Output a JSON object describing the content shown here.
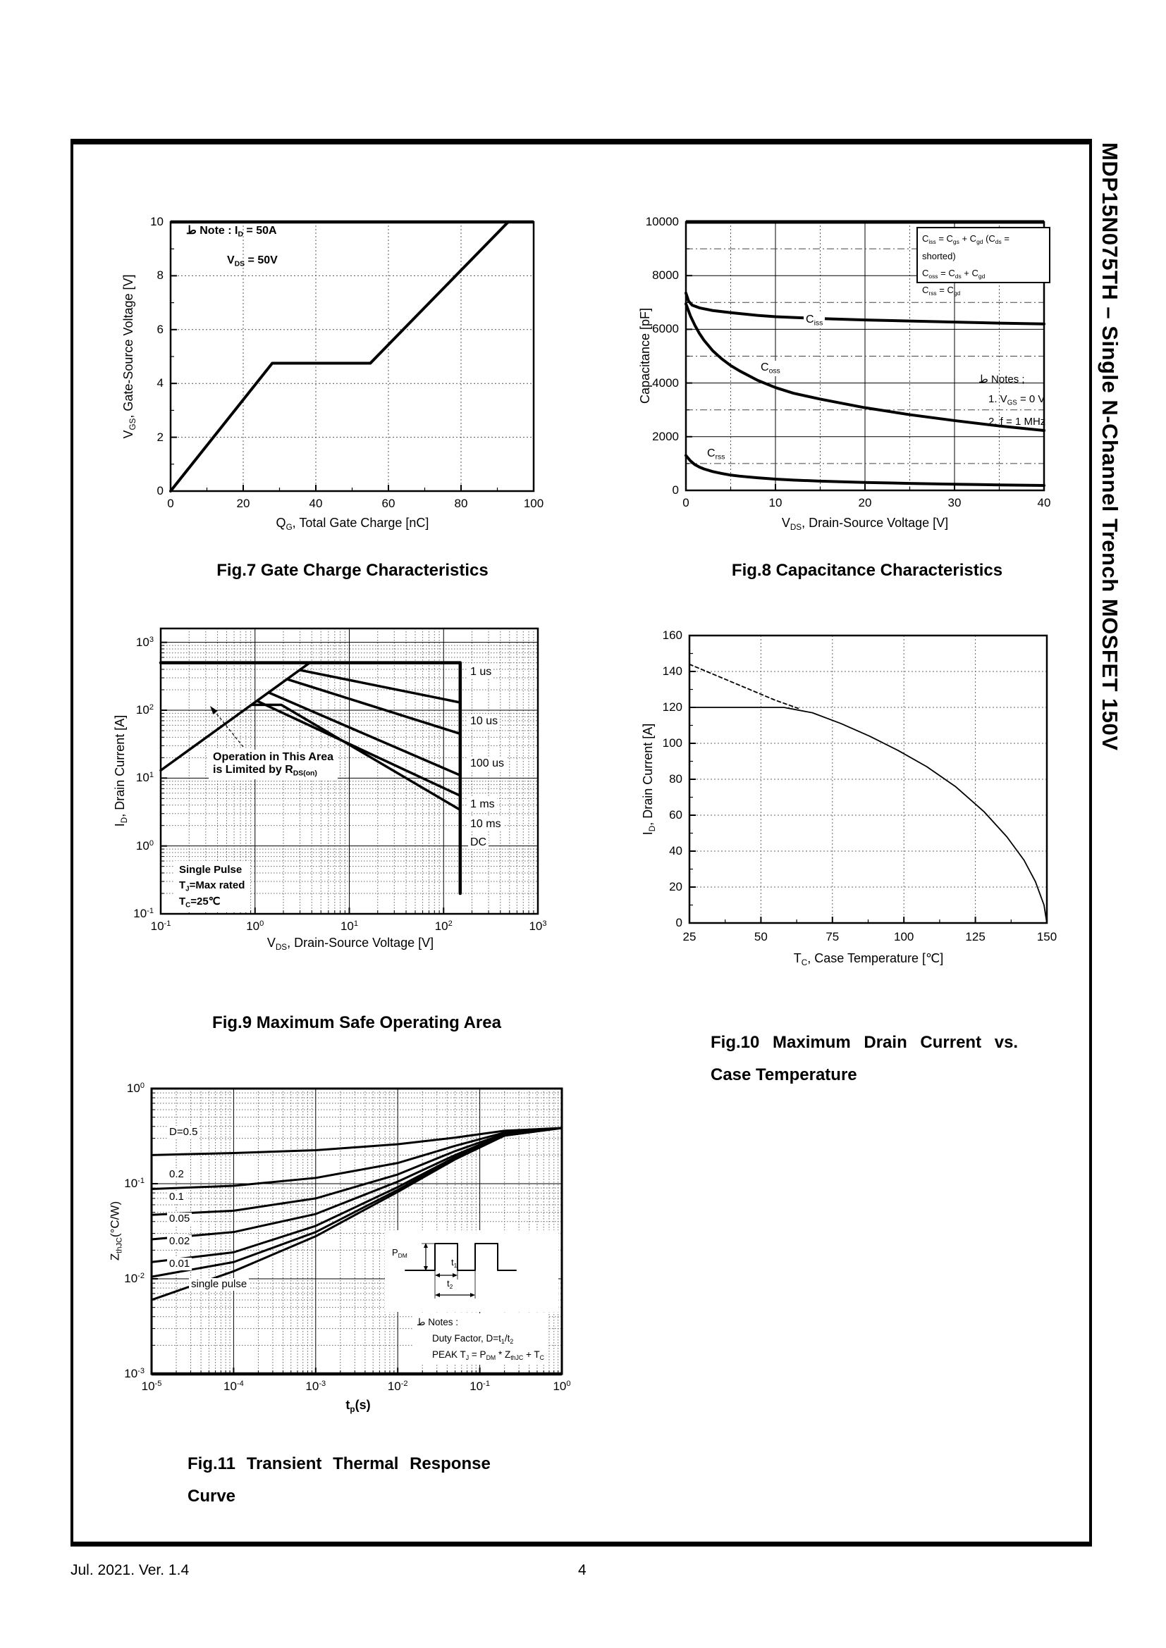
{
  "page": {
    "sidebar_title": "MDP15N075TH – Single N-Channel Trench MOSFET 150V",
    "footer_left": "Jul. 2021. Ver. 1.4",
    "page_number": "4"
  },
  "chart_data": [
    {
      "id": "fig7",
      "type": "line",
      "caption": "Fig.7 Gate Charge Characteristics",
      "xlabel": "Q_{G}, Total Gate Charge [nC]",
      "ylabel": "V_{GS}, Gate-Source Voltage [V]",
      "xlim": [
        0,
        100
      ],
      "ylim": [
        0,
        10
      ],
      "grid": "dotted",
      "xticks": [
        "0",
        "20",
        "40",
        "60",
        "80",
        "100"
      ],
      "yticks": [
        "0",
        "2",
        "4",
        "6",
        "8",
        "10"
      ],
      "notes": [
        "ط Note : I_{D} = 50A",
        "V_{DS} = 50V"
      ],
      "series": [
        {
          "name": "gate-charge-curve",
          "points": [
            [
              0,
              0
            ],
            [
              28,
              4.75
            ],
            [
              55,
              4.75
            ],
            [
              93,
              10
            ]
          ]
        }
      ]
    },
    {
      "id": "fig8",
      "type": "line",
      "caption": "Fig.8 Capacitance Characteristics",
      "xlabel": "V_{DS}, Drain-Source Voltage [V]",
      "ylabel": "Capacitance [pF]",
      "xlim": [
        0,
        40
      ],
      "ylim": [
        0,
        10000
      ],
      "xticks": [
        "0",
        "10",
        "20",
        "30",
        "40"
      ],
      "yticks": [
        "0",
        "2000",
        "4000",
        "6000",
        "8000",
        "10000"
      ],
      "legend": [
        "C_{iss} = C_{gs} + C_{gd} (C_{ds} = shorted)",
        "C_{oss} = C_{ds} + C_{gd}",
        "C_{rss} = C_{gd}"
      ],
      "notes": [
        "ط Notes ;",
        "1. V_{GS} = 0 V",
        "2. f = 1 MHz"
      ],
      "series": [
        {
          "name": "Ciss",
          "label": "C_{iss}",
          "points": [
            [
              0,
              7350
            ],
            [
              0.3,
              7050
            ],
            [
              0.7,
              6900
            ],
            [
              1.5,
              6800
            ],
            [
              3,
              6700
            ],
            [
              5,
              6620
            ],
            [
              8,
              6520
            ],
            [
              10,
              6470
            ],
            [
              15,
              6400
            ],
            [
              20,
              6350
            ],
            [
              25,
              6310
            ],
            [
              30,
              6270
            ],
            [
              35,
              6230
            ],
            [
              40,
              6200
            ]
          ]
        },
        {
          "name": "Coss",
          "label": "C_{oss}",
          "points": [
            [
              0,
              6950
            ],
            [
              0.5,
              6500
            ],
            [
              1,
              6150
            ],
            [
              1.5,
              5850
            ],
            [
              2,
              5600
            ],
            [
              3,
              5200
            ],
            [
              4,
              4900
            ],
            [
              5,
              4650
            ],
            [
              6,
              4450
            ],
            [
              8,
              4100
            ],
            [
              10,
              3830
            ],
            [
              12,
              3620
            ],
            [
              15,
              3400
            ],
            [
              20,
              3080
            ],
            [
              25,
              2820
            ],
            [
              30,
              2600
            ],
            [
              35,
              2400
            ],
            [
              40,
              2230
            ]
          ]
        },
        {
          "name": "Crss",
          "label": "C_{rss}",
          "points": [
            [
              0,
              1300
            ],
            [
              0.5,
              1100
            ],
            [
              1,
              960
            ],
            [
              1.5,
              870
            ],
            [
              2,
              800
            ],
            [
              3,
              700
            ],
            [
              4,
              630
            ],
            [
              5,
              570
            ],
            [
              6,
              530
            ],
            [
              8,
              470
            ],
            [
              10,
              420
            ],
            [
              12,
              385
            ],
            [
              15,
              345
            ],
            [
              20,
              295
            ],
            [
              25,
              260
            ],
            [
              30,
              230
            ],
            [
              35,
              205
            ],
            [
              40,
              185
            ]
          ]
        }
      ]
    },
    {
      "id": "fig9",
      "type": "line",
      "xlog": true,
      "ylog": true,
      "caption": "Fig.9 Maximum Safe Operating Area",
      "xlabel": "V_{DS}, Drain-Source Voltage [V]",
      "ylabel": "I_{D}, Drain Current [A]",
      "xlim": [
        0.1,
        1000
      ],
      "ylim": [
        0.1,
        1000
      ],
      "xticks": [
        "10^{-1}",
        "10^{0}",
        "10^{1}",
        "10^{2}",
        "10^{3}"
      ],
      "yticks": [
        "10^{-1}",
        "10^{0}",
        "10^{1}",
        "10^{2}",
        "10^{3}"
      ],
      "notes_area": [
        "Operation in This Area",
        "is Limited by R_{DS(on)}"
      ],
      "notes_pulse": [
        "Single Pulse",
        "T_{J}=Max rated",
        "T_{C}=25℃"
      ],
      "curve_labels": [
        "1 us",
        "10 us",
        "100 us",
        "1 ms",
        "10 ms",
        "DC"
      ],
      "series": [
        {
          "name": "rdson-limit-line",
          "points": [
            [
              0.1,
              13
            ],
            [
              3.8,
              500
            ]
          ]
        },
        {
          "name": "pulse-1us",
          "points": [
            [
              0.1,
              500
            ],
            [
              150,
              500
            ]
          ]
        },
        {
          "name": "vds-boundary-150V",
          "points": [
            [
              150,
              500
            ],
            [
              150,
              0.2
            ]
          ]
        },
        {
          "name": "pulse-10us",
          "points": [
            [
              3.0,
              390
            ],
            [
              150,
              130
            ]
          ]
        },
        {
          "name": "pulse-100us",
          "points": [
            [
              2.2,
              286
            ],
            [
              150,
              45
            ]
          ]
        },
        {
          "name": "pulse-1ms",
          "points": [
            [
              1.4,
              182
            ],
            [
              150,
              11
            ]
          ]
        },
        {
          "name": "pulse-10ms",
          "points": [
            [
              1.05,
              137
            ],
            [
              150,
              5.5
            ]
          ]
        },
        {
          "name": "dc",
          "points": [
            [
              0.92,
              120
            ],
            [
              1.9,
              120
            ],
            [
              150,
              3.4
            ]
          ]
        }
      ]
    },
    {
      "id": "fig10",
      "type": "line",
      "caption_line1": "Fig.10  Maximum  Drain  Current  vs.",
      "caption_line2": "Case Temperature",
      "xlabel": "T_{C}, Case Temperature [℃]",
      "ylabel": "I_{D}, Drain Current [A]",
      "xlim": [
        25,
        150
      ],
      "ylim": [
        0,
        160
      ],
      "xticks": [
        "25",
        "50",
        "75",
        "100",
        "125",
        "150"
      ],
      "yticks": [
        "0",
        "20",
        "40",
        "60",
        "80",
        "100",
        "120",
        "140",
        "160"
      ],
      "series": [
        {
          "name": "id-vs-tc",
          "style": "solid",
          "points": [
            [
              25,
              120
            ],
            [
              58,
              120
            ],
            [
              68,
              117
            ],
            [
              78,
              111
            ],
            [
              88,
              104
            ],
            [
              98,
              96
            ],
            [
              108,
              87
            ],
            [
              118,
              76
            ],
            [
              128,
              62
            ],
            [
              136,
              48
            ],
            [
              142,
              35
            ],
            [
              146,
              23
            ],
            [
              149,
              10
            ],
            [
              150,
              0
            ]
          ]
        },
        {
          "name": "id-vs-tc-extrapolation",
          "style": "dashed",
          "points": [
            [
              25,
              144
            ],
            [
              40,
              134
            ],
            [
              55,
              124
            ],
            [
              63,
              119.5
            ]
          ]
        }
      ]
    },
    {
      "id": "fig11",
      "type": "line",
      "xlog": true,
      "ylog": true,
      "caption_line1": "Fig.11  Transient  Thermal  Response",
      "caption_line2": "Curve",
      "xlabel": "t_{p}(s)",
      "ylabel": "Z_{thJC}(°C/W)",
      "xlim": [
        1e-05,
        1
      ],
      "ylim": [
        0.001,
        1
      ],
      "xticks": [
        "10^{-5}",
        "10^{-4}",
        "10^{-3}",
        "10^{-2}",
        "10^{-1}",
        "10^{0}"
      ],
      "yticks": [
        "10^{-3}",
        "10^{-2}",
        "10^{-1}",
        "10^{0}"
      ],
      "curve_labels": [
        "D=0.5",
        "0.2",
        "0.1",
        "0.05",
        "0.02",
        "0.01",
        "single pulse"
      ],
      "notes": [
        "ط Notes :",
        "Duty Factor, D=t_{1}/t_{2}",
        "PEAK T_{J} = P_{DM} * Z_{thJC} + T_{C}"
      ],
      "inset": {
        "p": "P_{DM}",
        "t1": "t_{1}",
        "t2": "t_{2}"
      },
      "series": [
        {
          "name": "D-0.5",
          "points": [
            [
              1e-05,
              0.2
            ],
            [
              0.0001,
              0.21
            ],
            [
              0.001,
              0.225
            ],
            [
              0.01,
              0.26
            ],
            [
              0.05,
              0.305
            ],
            [
              0.2,
              0.36
            ],
            [
              1,
              0.385
            ]
          ]
        },
        {
          "name": "D-0.2",
          "points": [
            [
              1e-05,
              0.088
            ],
            [
              0.0001,
              0.095
            ],
            [
              0.001,
              0.115
            ],
            [
              0.01,
              0.165
            ],
            [
              0.05,
              0.25
            ],
            [
              0.2,
              0.345
            ],
            [
              1,
              0.385
            ]
          ]
        },
        {
          "name": "D-0.1",
          "points": [
            [
              1e-05,
              0.047
            ],
            [
              0.0001,
              0.052
            ],
            [
              0.001,
              0.07
            ],
            [
              0.01,
              0.125
            ],
            [
              0.05,
              0.22
            ],
            [
              0.2,
              0.335
            ],
            [
              1,
              0.385
            ]
          ]
        },
        {
          "name": "D-0.05",
          "points": [
            [
              1e-05,
              0.026
            ],
            [
              0.0001,
              0.031
            ],
            [
              0.001,
              0.048
            ],
            [
              0.01,
              0.105
            ],
            [
              0.05,
              0.2
            ],
            [
              0.2,
              0.33
            ],
            [
              1,
              0.385
            ]
          ]
        },
        {
          "name": "D-0.02",
          "points": [
            [
              1e-05,
              0.015
            ],
            [
              0.0001,
              0.019
            ],
            [
              0.001,
              0.036
            ],
            [
              0.01,
              0.092
            ],
            [
              0.05,
              0.19
            ],
            [
              0.2,
              0.325
            ],
            [
              1,
              0.385
            ]
          ]
        },
        {
          "name": "D-0.01",
          "points": [
            [
              1e-05,
              0.0105
            ],
            [
              0.0001,
              0.015
            ],
            [
              0.001,
              0.031
            ],
            [
              0.01,
              0.086
            ],
            [
              0.05,
              0.185
            ],
            [
              0.2,
              0.32
            ],
            [
              1,
              0.385
            ]
          ]
        },
        {
          "name": "single-pulse",
          "points": [
            [
              1e-05,
              0.006
            ],
            [
              0.0001,
              0.012
            ],
            [
              0.001,
              0.028
            ],
            [
              0.01,
              0.082
            ],
            [
              0.05,
              0.18
            ],
            [
              0.2,
              0.32
            ],
            [
              1,
              0.385
            ]
          ]
        }
      ]
    }
  ]
}
